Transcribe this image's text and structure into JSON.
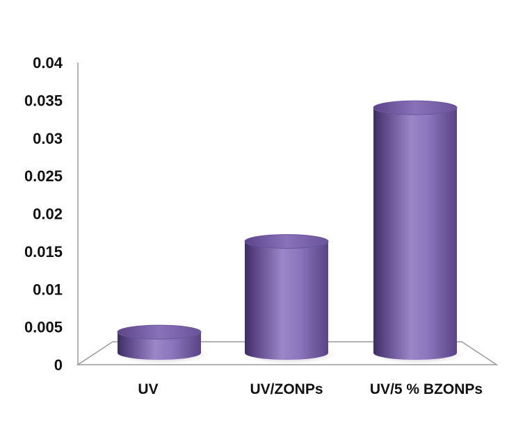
{
  "chart_data": {
    "type": "bar",
    "style": "3d-cylinder",
    "categories": [
      "UV",
      "UV/ZONPs",
      "UV/5 % BZONPs"
    ],
    "values": [
      0.0045,
      0.0165,
      0.0342
    ],
    "ylim": [
      0,
      0.04
    ],
    "yticks": [
      "0",
      "0.005",
      "0.01",
      "0.015",
      "0.02",
      "0.025",
      "0.03",
      "0.035",
      "0.04"
    ],
    "grid": false,
    "legend": "none",
    "colors": {
      "bar_light": "#9b86c8",
      "bar_mid": "#7c64ad",
      "bar_dark": "#3d2d5e",
      "top_light": "#8a72bb",
      "top_dark": "#5c4488",
      "axis": "#9a9a9a"
    }
  }
}
